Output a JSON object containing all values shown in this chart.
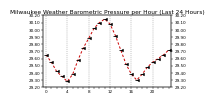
{
  "title": "Milwaukee Weather Barometric Pressure per Hour (Last 24 Hours)",
  "background_color": "#ffffff",
  "grid_color": "#888888",
  "line_color": "#cc0000",
  "marker_color": "#000000",
  "hours": [
    0,
    1,
    2,
    3,
    4,
    5,
    6,
    7,
    8,
    9,
    10,
    11,
    12,
    13,
    14,
    15,
    16,
    17,
    18,
    19,
    20,
    21,
    22,
    23
  ],
  "pressure": [
    29.65,
    29.55,
    29.42,
    29.35,
    29.28,
    29.38,
    29.58,
    29.75,
    29.88,
    30.02,
    30.1,
    30.15,
    30.08,
    29.92,
    29.72,
    29.52,
    29.38,
    29.3,
    29.38,
    29.48,
    29.55,
    29.6,
    29.65,
    29.72
  ],
  "ylim_min": 29.2,
  "ylim_max": 30.2,
  "ytick_step": 0.1,
  "title_fontsize": 4.2,
  "tick_fontsize": 3.0,
  "ylabel_fontsize": 3.0,
  "grid_positions": [
    0,
    4,
    8,
    12,
    16,
    20
  ]
}
